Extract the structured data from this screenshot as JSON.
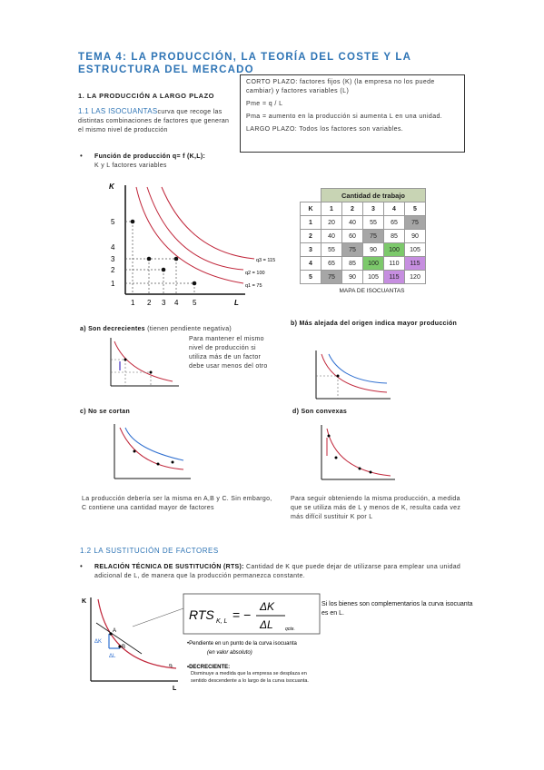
{
  "title": "TEMA 4: LA PRODUCCIÓN, LA TEORÍA DEL COSTE Y LA ESTRUCTURA DEL MERCADO",
  "section1": {
    "heading": "1. LA PRODUCCIÓN A LARGO PLAZO",
    "sub_label": "1.1 LAS ISOCUANTAS",
    "sub_text": "curva que recoge las distintas combinaciones de factores que generan el mismo nivel de producción",
    "bullet_title": "Función de producción q= f (K,L):",
    "bullet_sub": "K y L factores variables"
  },
  "box": {
    "p1": "CORTO PLAZO: factores fijos (K) (la empresa no los puede cambiar) y factores variables (L)",
    "p2": "Pme = q / L",
    "p3": "Pma = aumento en la producción si aumenta L en una unidad.",
    "p4": "LARGO PLAZO: Todos los factores son variables."
  },
  "main_graph": {
    "axis_k": "K",
    "axis_l": "L",
    "yticks": [
      "5",
      "4",
      "3",
      "2",
      "1"
    ],
    "xticks": [
      "1",
      "2",
      "3",
      "4",
      "5"
    ],
    "curves": [
      "q3 = 115",
      "q2 = 100",
      "q1 = 75"
    ]
  },
  "table": {
    "title": "Cantidad de trabajo",
    "header": [
      "K",
      "1",
      "2",
      "3",
      "4",
      "5"
    ],
    "rows": [
      [
        "1",
        "20",
        "40",
        "55",
        "65",
        "75"
      ],
      [
        "2",
        "40",
        "60",
        "75",
        "85",
        "90"
      ],
      [
        "3",
        "55",
        "75",
        "90",
        "100",
        "105"
      ],
      [
        "4",
        "65",
        "85",
        "100",
        "110",
        "115"
      ],
      [
        "5",
        "75",
        "90",
        "105",
        "115",
        "120"
      ]
    ],
    "caption": "MAPA DE ISOCUANTAS",
    "colors": {
      "gray": "#a6a6a6",
      "green": "#7cc96b",
      "purple": "#c68ee0",
      "header": "#c8d4b4"
    }
  },
  "props": {
    "a_label": "a) Son decrecientes",
    "a_paren": "(tienen pendiente negativa)",
    "a_text": "Para mantener el mismo nivel de producción si utiliza más de un factor debe usar menos del otro",
    "b_label": "b) Más alejada del origen indica mayor producción",
    "c_label": "c) No se cortan",
    "c_text": "La producción debería ser la misma en A,B y C. Sin embargo, C contiene una cantidad mayor de factores",
    "d_label": "d) Son convexas",
    "d_text": "Para seguir obteniendo la misma producción, a medida que se utiliza más de L y menos de K, resulta cada vez más difícil sustituir K por L"
  },
  "section2": {
    "heading": "1.2 LA SUSTITUCIÓN DE FACTORES",
    "rts_title": "RELACIÓN TÉCNICA DE SUSTITUCIÓN (RTS):",
    "rts_text": "Cantidad de K que puede dejar de utilizarse para emplear una unidad adicional de L, de manera que la producción permanezca constante.",
    "side_note": "Si los bienes son complementarios la curva isocuanta es en L.",
    "slope_label": "•Pendiente en un punto de la curva isocuanta",
    "slope_sub": "(en valor absoluto)",
    "dec_label": "•DECRECIENTE:",
    "dec_text": "Disminuye a medida que la empresa se desplaza en sentido descendente a lo largo de la curva isocuanta."
  },
  "colors": {
    "accent": "#2e74b5",
    "curve_red": "#c0263a",
    "curve_blue": "#2f6fd0"
  }
}
